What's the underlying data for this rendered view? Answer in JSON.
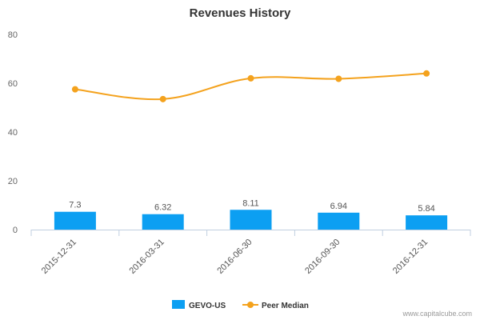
{
  "chart_data": {
    "type": "bar",
    "title": "Revenues History",
    "categories": [
      "2015-12-31",
      "2016-03-31",
      "2016-06-30",
      "2016-09-30",
      "2016-12-31"
    ],
    "ylim": [
      0,
      80
    ],
    "yticks": [
      0,
      20,
      40,
      60,
      80
    ],
    "grid": false,
    "legend_position": "bottom-center",
    "series": [
      {
        "name": "GEVO-US",
        "type": "bar",
        "values": [
          7.3,
          6.32,
          8.11,
          6.94,
          5.84
        ],
        "labels": [
          "7.3",
          "6.32",
          "8.11",
          "6.94",
          "5.84"
        ],
        "color": "#0c9ff2"
      },
      {
        "name": "Peer Median",
        "type": "line",
        "values": [
          57.5,
          53.5,
          62.0,
          61.8,
          64.0
        ],
        "color": "#f4a21d"
      }
    ]
  },
  "credit": "www.capitalcube.com"
}
